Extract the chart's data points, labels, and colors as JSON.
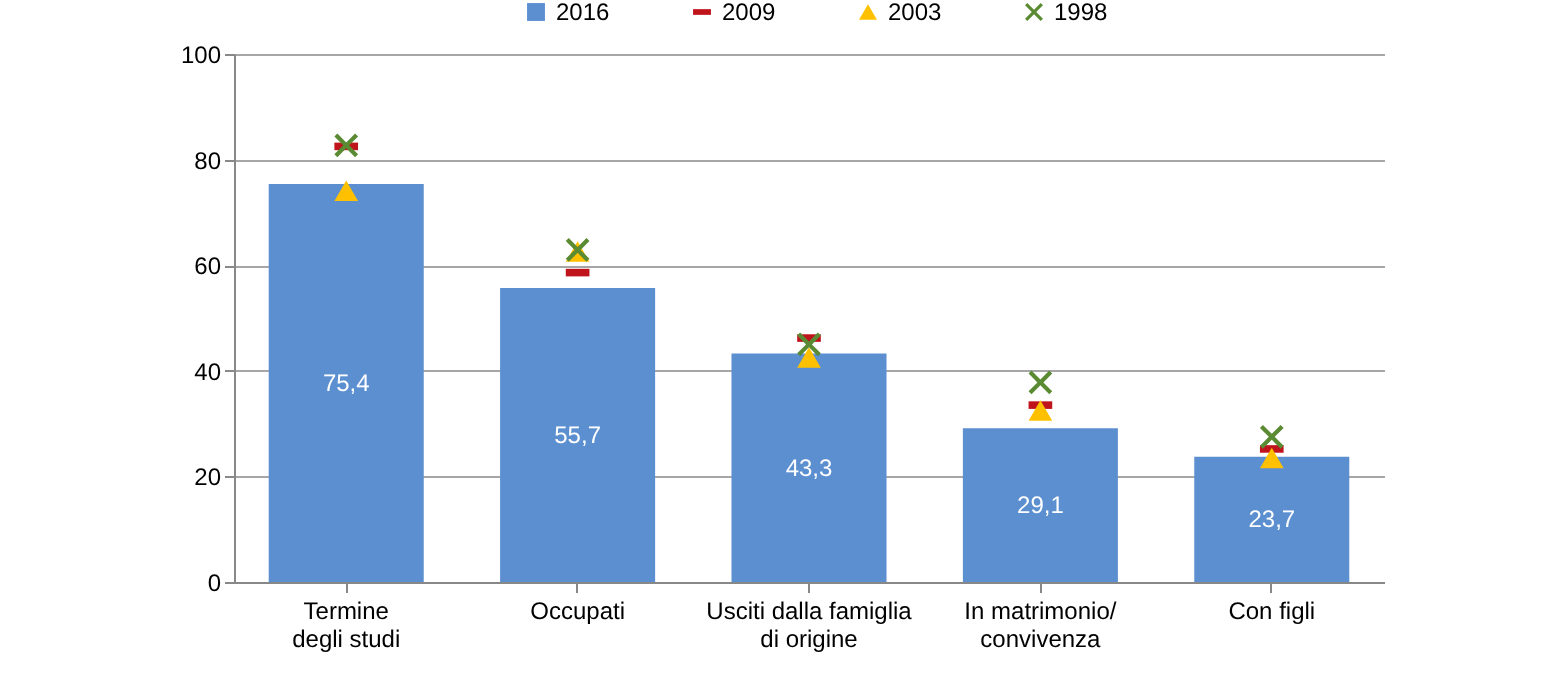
{
  "chart_data": {
    "type": "bar",
    "categories": [
      "Termine\ndegli studi",
      "Occupati",
      "Usciti dalla famiglia\ndi origine",
      "In matrimonio/\nconvivenza",
      "Con figli"
    ],
    "series": [
      {
        "name": "2016",
        "color": "#5b8fd0",
        "values": [
          75.4,
          55.7,
          43.3,
          29.1,
          23.7
        ],
        "value_labels": [
          "75,4",
          "55,7",
          "43,3",
          "29,1",
          "23,7"
        ]
      },
      {
        "name": "2009",
        "type": "scatter",
        "marker": "square",
        "color": "#c0141c",
        "values": [
          82.5,
          58.6,
          46.2,
          33.5,
          25.2
        ]
      },
      {
        "name": "2003",
        "type": "scatter",
        "marker": "triangle",
        "color": "#ffc000",
        "values": [
          74.1,
          62.6,
          42.5,
          32.5,
          23.5
        ]
      },
      {
        "name": "1998",
        "type": "scatter",
        "marker": "cross",
        "color": "#5a8a32",
        "values": [
          82.7,
          62.9,
          45,
          37.8,
          27.5
        ]
      }
    ],
    "ylim": [
      0,
      100
    ],
    "yticks": [
      0,
      20,
      40,
      60,
      80,
      100
    ],
    "grid": "y",
    "legend": "top"
  }
}
